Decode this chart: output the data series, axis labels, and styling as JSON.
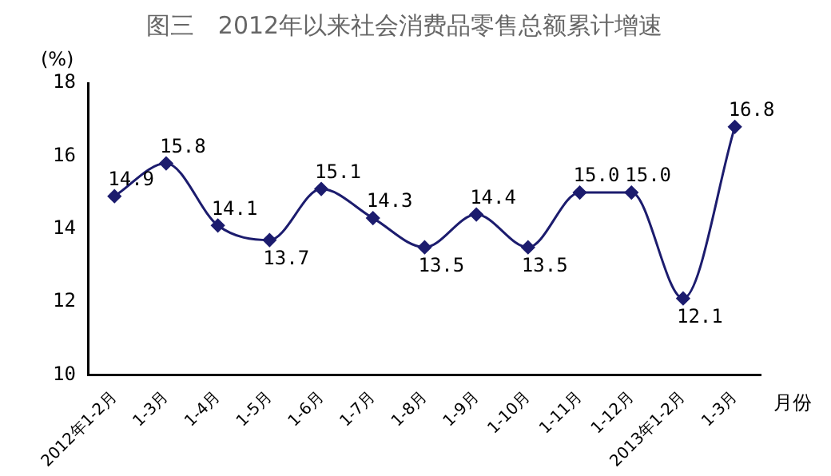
{
  "chart_data": {
    "type": "line",
    "title": "图三　2012年以来社会消费品零售总额累计增速",
    "ylabel": "(%)",
    "xlabel": "月份",
    "categories": [
      "2012年1-2月",
      "1-3月",
      "1-4月",
      "1-5月",
      "1-6月",
      "1-7月",
      "1-8月",
      "1-9月",
      "1-10月",
      "1-11月",
      "1-12月",
      "2013年1-2月",
      "1-3月"
    ],
    "series": [
      {
        "color": "#1c1c6e",
        "values": [
          14.9,
          15.8,
          14.1,
          13.7,
          15.1,
          14.3,
          13.5,
          14.4,
          13.5,
          15.0,
          15.0,
          12.1,
          16.8
        ],
        "value_labels": [
          "14.9",
          "15.8",
          "14.1",
          "13.7",
          "15.1",
          "14.3",
          "13.5",
          "14.4",
          "13.5",
          "15.0",
          "15.0",
          "12.1",
          "16.8"
        ]
      }
    ],
    "ylim": [
      10,
      18
    ],
    "yticks": [
      10,
      12,
      14,
      16,
      18
    ],
    "grid": false,
    "legend": false,
    "marker": "diamond",
    "line_style": "solid"
  }
}
